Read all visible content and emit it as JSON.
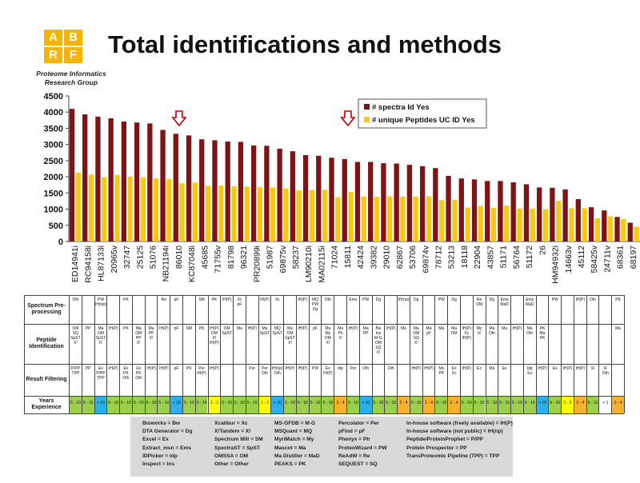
{
  "header": {
    "title": "Total identifications and methods",
    "logo_letters": [
      "A",
      "B",
      "R",
      "F"
    ],
    "group_name": "Proteome Informatics Research Group"
  },
  "colors": {
    "spectra": "#7f1416",
    "peptides": "#f7c815",
    "arrow": "#c00000",
    "logo": "#f5b400",
    "years_green": "#9bd04a",
    "years_yellow": "#ffff00",
    "years_cyan": "#2bb0ec",
    "years_orange": "#f6b12d"
  },
  "chart_data": {
    "type": "bar",
    "categories": [
      "ED14941i",
      "RC94158i",
      "HL87133i",
      "20965v",
      "32747",
      "25125",
      "51076",
      "NB21194i",
      "86010",
      "KC87048i",
      "45685",
      "71755v",
      "81798",
      "96321",
      "PR20899i",
      "51987",
      "69875v",
      "58237",
      "LM90210i",
      "MA02115i",
      "71024",
      "15811",
      "42424",
      "39382",
      "29010",
      "62867",
      "53706",
      "69874v",
      "78712",
      "53213",
      "18118",
      "22904",
      "43857",
      "51171",
      "56764",
      "51172",
      "26",
      "HM94932i",
      "14663v",
      "45112",
      "58425v",
      "24711v",
      "68361",
      "68197"
    ],
    "series": [
      {
        "name": "# spectra Id Yes",
        "values": [
          4100,
          3930,
          3860,
          3810,
          3710,
          3680,
          3650,
          3450,
          3330,
          3280,
          3160,
          3130,
          3090,
          3080,
          2970,
          2960,
          2870,
          2790,
          2670,
          2650,
          2590,
          2550,
          2460,
          2460,
          2420,
          2410,
          2370,
          2330,
          2270,
          2030,
          1950,
          1920,
          1870,
          1870,
          1830,
          1770,
          1670,
          1660,
          1610,
          1310,
          1060,
          960,
          760,
          580
        ]
      },
      {
        "name": "# unique Peptides UC ID Yes",
        "values": [
          2130,
          2070,
          1990,
          2060,
          2010,
          1990,
          1950,
          1930,
          1800,
          1820,
          1720,
          1730,
          1710,
          1700,
          1680,
          1670,
          1640,
          1580,
          1590,
          1600,
          1370,
          1530,
          1390,
          1380,
          1400,
          1390,
          1390,
          1400,
          1280,
          1290,
          1050,
          1100,
          1040,
          1110,
          1020,
          1020,
          1000,
          1260,
          1030,
          1030,
          720,
          780,
          700,
          460
        ]
      }
    ],
    "ylim": [
      0,
      4500
    ],
    "y_ticks": [
      0,
      500,
      1000,
      1500,
      2000,
      2500,
      3000,
      3500,
      4000,
      4500
    ],
    "legend_position": "top-right",
    "grid": false,
    "highlight_arrows": [
      "86010",
      "15811"
    ]
  },
  "methods_table": {
    "row_labels": [
      "Spectrum Pre-processing",
      "Peptide Identification",
      "Result Filtering",
      "Years Experience"
    ],
    "preprocessing": [
      "Oth",
      "",
      "PW\nIH(np)",
      "",
      "PK",
      "",
      "",
      "Re",
      "pF",
      "",
      "SM",
      "PK",
      "IH(P)",
      "Xc\npF",
      "",
      "IH(P)",
      "Xc",
      "",
      "IH(P)",
      "MQ\nPW\nDg",
      "Oth",
      "",
      "Ems",
      "PW",
      "Dg",
      "",
      "IH(np)",
      "Dg",
      "",
      "PW",
      "Dg",
      "",
      "Re\nOM",
      "Dg",
      "Ems\nMaD",
      "",
      "Ems\nMaD",
      "",
      "PW",
      "",
      "IH(P)",
      "Oth",
      "",
      "PK"
    ],
    "identification": [
      "OM\nSQ\nSpST\nX!",
      "PP",
      "Ma\nOM\nSpST\nX!",
      "IH(P)",
      "PK",
      "Ma\nOM\nPP\nX!",
      "Ma\nPP\nX!",
      "IH(P)",
      "pF",
      "SM",
      "PK",
      "IH(P)\nOM\nX!\nIH(P)",
      "OM\nSpST",
      "Ma",
      "IH(P)",
      "Ma\nSpST",
      "MQ\nSpST",
      "Ma\nOM\nSpST\nX!",
      "IH(P)",
      "pF",
      "Ma\nMy\nOM\nX!",
      "Ma\nPh\nX!",
      "IH(P)",
      "Ma\nPP",
      "Bw\nIns\nM-G\nOM\nSQ\nX!",
      "IH(P)",
      "Ma",
      "Ma\nOM\nSQ\nX!",
      "Ma\npF",
      "Ma",
      "Ma\nOM",
      "IH(P)\nXc\nIH(P)",
      "My\nX!",
      "Ma\nOth",
      "Ma",
      "IH(P)",
      "Ma\nOth",
      "PK\nMa\nPK",
      "",
      "",
      "",
      "",
      "",
      "Ma"
    ],
    "filtering": [
      "P/PP\nTPP",
      "PP",
      "Ex\nP/PP\nTPP",
      "IH(P)",
      "Ex\nPK\nOth",
      "Ex\nPK\nOth",
      "IH(P)",
      "IH(P)",
      "pF",
      "PK",
      "Per\nIH(P)",
      "IH(P)",
      "",
      "",
      "Per",
      "Per\nOth",
      "IH(np)\nOth",
      "IH(P)",
      "IH(P)",
      "PW",
      "Ex\nIH(P)",
      "Idp",
      "Per",
      "Oth",
      "",
      "Oth",
      "",
      "IH(P)",
      "IH(P)",
      "Ms\nPP",
      "Ex\nXc",
      "IH(P)",
      "Ex",
      "Ma",
      "Ex",
      "",
      "Idp\nEx",
      "IH(P)",
      "Ex",
      "IH(P)",
      "IH(P)",
      "R",
      "R\nOth",
      ""
    ],
    "years": [
      "5 - 10",
      "5 - 10",
      "> 10",
      "5 - 10",
      "5 - 10",
      "5 - 10",
      "5 - 10",
      "5 - 10",
      "> 10",
      "5 - 10",
      "5 - 10",
      "1 - 2",
      "5 - 10",
      "5 - 10",
      "5 - 10",
      "1 - 2",
      "> 10",
      "5 - 10",
      "5 - 10",
      "5 - 10",
      "5 - 10",
      "2 - 4",
      "5 - 10",
      "> 10",
      "5 - 10",
      "5 - 10",
      "2 - 4",
      "5 - 10",
      "2 - 4",
      "5 - 10",
      "2 - 4",
      "5 - 10",
      "5 - 10",
      "5 - 10",
      "5 - 10",
      "5 - 10",
      "5 - 10",
      "> 10",
      "5 - 10",
      "1 - 2",
      "2 - 4",
      "5 - 10",
      "< 1",
      "2 - 4"
    ]
  },
  "abbreviations": [
    [
      "Bioworks = Bw",
      "DTA Generator = Dg",
      "Excel = Ex",
      "Extract_msn = Ems",
      "IDPicker = idp",
      "Inspect = Ins"
    ],
    [
      "Xcalibur = Xc",
      "X!Tandem = X!",
      "Spectrum Mill = SM",
      "SpectraST = SpST",
      "OMSSA = OM",
      "Other = Other"
    ],
    [
      "MS-GFDB = M-G",
      "MSQuant = MQ",
      "MyriMatch = My",
      "Mascot = Ma",
      "Ma Distiller = MaD",
      "PEAKS = PK"
    ],
    [
      "Percolator = Per",
      "pFind = pF",
      "Phenyx = Ph",
      "ProteoWizard = PW",
      "ReAdW = Re",
      "SEQUEST = SQ"
    ],
    [
      "In-house software (freely available) = IH(P)",
      "In-house software (not public) = IH(np)",
      "Peptide/ProteinProphet = P/PP",
      "Protein Prospector = PP",
      "TransProteomic Pipeline (TPP) = TPP",
      ""
    ]
  ]
}
